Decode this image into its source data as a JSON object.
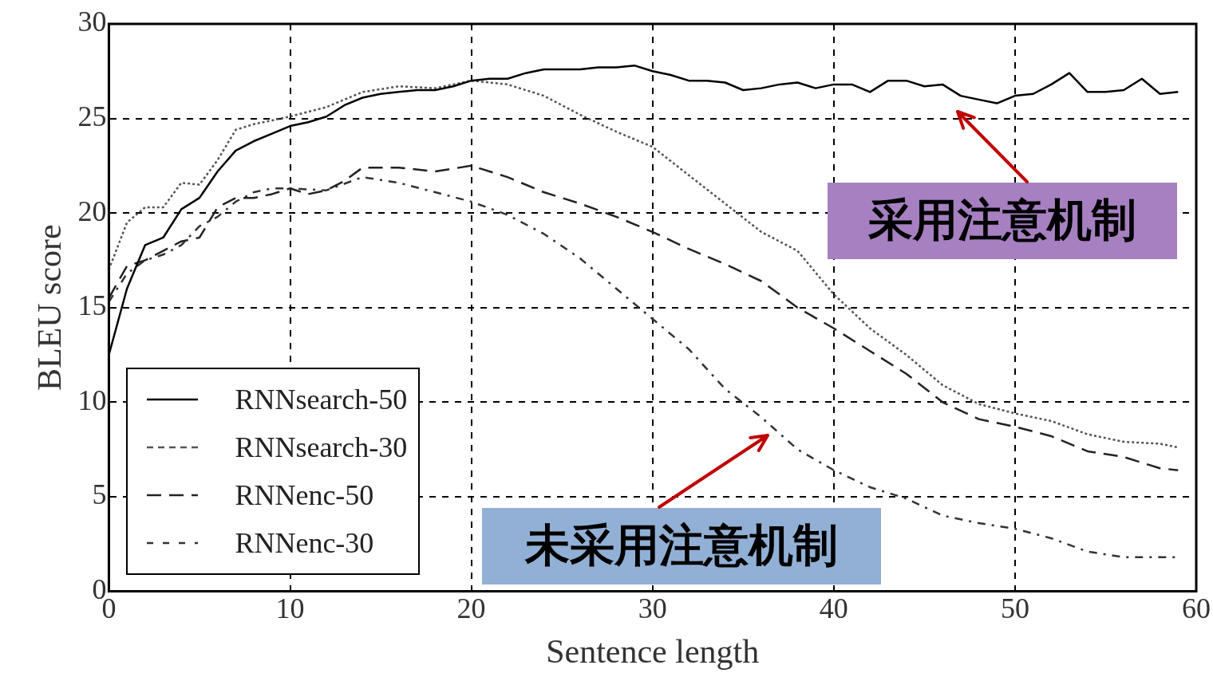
{
  "chart_data": {
    "type": "line",
    "xlabel": "Sentence length",
    "ylabel": "BLEU score",
    "xlim": [
      0,
      60
    ],
    "ylim": [
      0,
      30
    ],
    "xticks": [
      0,
      10,
      20,
      30,
      40,
      50,
      60
    ],
    "yticks": [
      0,
      5,
      10,
      15,
      20,
      25,
      30
    ],
    "grid": true,
    "legend": "bottom left",
    "marker": "none",
    "series": [
      {
        "name": "RNNsearch-50",
        "color": "#000000",
        "line_style": "solid",
        "x": [
          0,
          1,
          2,
          3,
          4,
          5,
          6,
          7,
          8,
          9,
          10,
          11,
          12,
          13,
          14,
          15,
          16,
          17,
          18,
          19,
          20,
          21,
          22,
          23,
          24,
          25,
          26,
          27,
          28,
          29,
          30,
          31,
          32,
          33,
          34,
          35,
          36,
          37,
          38,
          39,
          40,
          41,
          42,
          43,
          44,
          45,
          46,
          47,
          48,
          49,
          50,
          51,
          52,
          53,
          54,
          55,
          56,
          57,
          58,
          59
        ],
        "values": [
          12.5,
          16,
          18.3,
          18.7,
          20.2,
          20.8,
          22.2,
          23.3,
          23.8,
          24.2,
          24.6,
          24.8,
          25.1,
          25.7,
          26.1,
          26.3,
          26.4,
          26.5,
          26.5,
          26.7,
          27,
          27.1,
          27.1,
          27.4,
          27.6,
          27.6,
          27.6,
          27.7,
          27.7,
          27.8,
          27.5,
          27.3,
          27,
          27,
          26.9,
          26.5,
          26.6,
          26.8,
          26.9,
          26.6,
          26.8,
          26.8,
          26.4,
          27,
          27,
          26.7,
          26.8,
          26.2,
          26,
          25.8,
          26.2,
          26.3,
          26.8,
          27.4,
          26.4,
          26.4,
          26.5,
          27.1,
          26.3,
          26.4
        ]
      },
      {
        "name": "RNNsearch-30",
        "color": "#555555",
        "line_style": "dotted",
        "x": [
          0,
          1,
          2,
          3,
          4,
          5,
          6,
          7,
          8,
          9,
          10,
          12,
          14,
          16,
          18,
          20,
          22,
          24,
          26,
          28,
          30,
          32,
          34,
          36,
          38,
          40,
          42,
          44,
          46,
          48,
          50,
          52,
          54,
          56,
          58,
          59
        ],
        "values": [
          17,
          19.5,
          20.3,
          20.3,
          21.6,
          21.5,
          22.8,
          24.4,
          24.7,
          24.9,
          25.1,
          25.6,
          26.4,
          26.7,
          26.6,
          27,
          26.8,
          26.2,
          25.2,
          24.3,
          23.5,
          22,
          20.5,
          19,
          18,
          15.7,
          13.9,
          12.5,
          10.9,
          9.9,
          9.4,
          9,
          8.3,
          7.9,
          7.8,
          7.6
        ]
      },
      {
        "name": "RNNenc-50",
        "color": "#222222",
        "line_style": "dashed",
        "x": [
          0,
          1,
          2,
          3,
          4,
          5,
          6,
          7,
          8,
          9,
          10,
          11,
          12,
          13,
          14,
          16,
          18,
          20,
          22,
          24,
          26,
          28,
          30,
          32,
          34,
          36,
          38,
          40,
          42,
          44,
          46,
          48,
          50,
          52,
          54,
          56,
          58,
          59
        ],
        "values": [
          15.5,
          17.2,
          17.5,
          18,
          18.5,
          18.7,
          20.3,
          20.8,
          20.8,
          21,
          21.3,
          21,
          21.2,
          21.7,
          22.4,
          22.4,
          22.2,
          22.5,
          21.9,
          21.1,
          20.5,
          19.8,
          19,
          18.1,
          17.3,
          16.4,
          15,
          13.9,
          12.7,
          11.5,
          10,
          9.1,
          8.7,
          8.2,
          7.4,
          7.1,
          6.5,
          6.4
        ]
      },
      {
        "name": "RNNenc-30",
        "color": "#333333",
        "line_style": "dashdot",
        "x": [
          0,
          1,
          2,
          3,
          4,
          5,
          6,
          7,
          8,
          9,
          10,
          12,
          14,
          16,
          18,
          20,
          22,
          24,
          26,
          28,
          30,
          32,
          34,
          36,
          38,
          40,
          42,
          44,
          46,
          48,
          50,
          52,
          54,
          56,
          58,
          59
        ],
        "values": [
          15.3,
          16.8,
          17.5,
          17.8,
          18.3,
          19.3,
          19.8,
          20.6,
          21.1,
          21.3,
          21.3,
          21.2,
          21.9,
          21.6,
          21.1,
          20.6,
          19.9,
          18.9,
          17.6,
          16,
          14.4,
          12.8,
          10.7,
          9.2,
          7.5,
          6.4,
          5.5,
          4.9,
          4,
          3.6,
          3.3,
          2.8,
          2.1,
          1.8,
          1.8,
          1.8
        ]
      }
    ],
    "annotations": [
      "采用注意机制",
      "未采用注意机制"
    ]
  }
}
